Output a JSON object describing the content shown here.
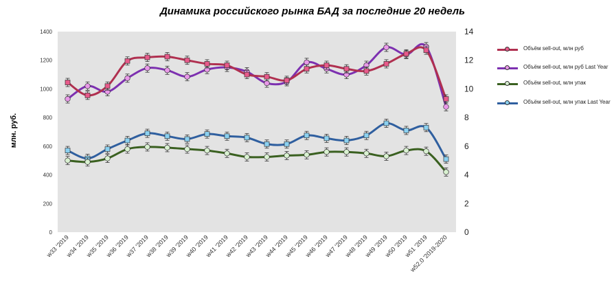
{
  "chart_data": {
    "type": "line",
    "title": "Динамика российского рынка БАД за последние 20 недель",
    "ylabel": "млн. руб.",
    "ylim_left": [
      0,
      1400
    ],
    "ylim_right": [
      0,
      14
    ],
    "left_ticks": [
      "0",
      "200",
      "400",
      "600",
      "800",
      "1000",
      "1200",
      "1400"
    ],
    "right_ticks": [
      "0",
      "2",
      "4",
      "6",
      "8",
      "10",
      "12",
      "14"
    ],
    "categories": [
      "w33 '2019",
      "w34 '2019",
      "w35 '2019",
      "w36 '2019",
      "w37 '2019",
      "w38 '2019",
      "w39 '2019",
      "w40 '2019",
      "w41 '2019",
      "w42 '2019",
      "w43 '2019",
      "w44 '2019",
      "w45 '2019",
      "w46 '2019",
      "w47 '2019",
      "w48 '2019",
      "w49 '2019",
      "w50 '2019",
      "w51 '2019",
      "w52.0 '2019-2020"
    ],
    "grid": false,
    "legend_position": "right",
    "series": [
      {
        "name": "Объём sell-out, млн руб",
        "axis": "left",
        "color": "#b03050",
        "marker": "#e85a8a",
        "values": [
          1045,
          955,
          1020,
          1195,
          1220,
          1225,
          1200,
          1175,
          1165,
          1100,
          1085,
          1060,
          1140,
          1165,
          1140,
          1125,
          1175,
          1245,
          1270,
          930
        ]
      },
      {
        "name": "Объём sell-out, млн руб Last Year",
        "axis": "left",
        "color": "#7d30b0",
        "marker": "#e898e8",
        "values": [
          930,
          1020,
          980,
          1075,
          1145,
          1130,
          1085,
          1135,
          1150,
          1120,
          1040,
          1050,
          1185,
          1140,
          1100,
          1165,
          1290,
          1240,
          1295,
          875
        ]
      },
      {
        "name": "Объём sell-out, млн упак",
        "axis": "right",
        "color": "#3a6020",
        "marker": "#d8f0d0",
        "values": [
          5.0,
          4.9,
          5.15,
          5.8,
          5.95,
          5.9,
          5.8,
          5.7,
          5.5,
          5.25,
          5.25,
          5.35,
          5.4,
          5.6,
          5.6,
          5.5,
          5.3,
          5.7,
          5.65,
          4.2
        ]
      },
      {
        "name": "Объём sell-out, млн упак Last Year",
        "axis": "right",
        "color": "#2f5f9f",
        "marker": "#8ad0f0",
        "values": [
          5.7,
          5.15,
          5.8,
          6.4,
          6.9,
          6.7,
          6.5,
          6.85,
          6.7,
          6.6,
          6.15,
          6.15,
          6.75,
          6.55,
          6.4,
          6.75,
          7.6,
          7.1,
          7.3,
          5.1
        ]
      }
    ]
  }
}
